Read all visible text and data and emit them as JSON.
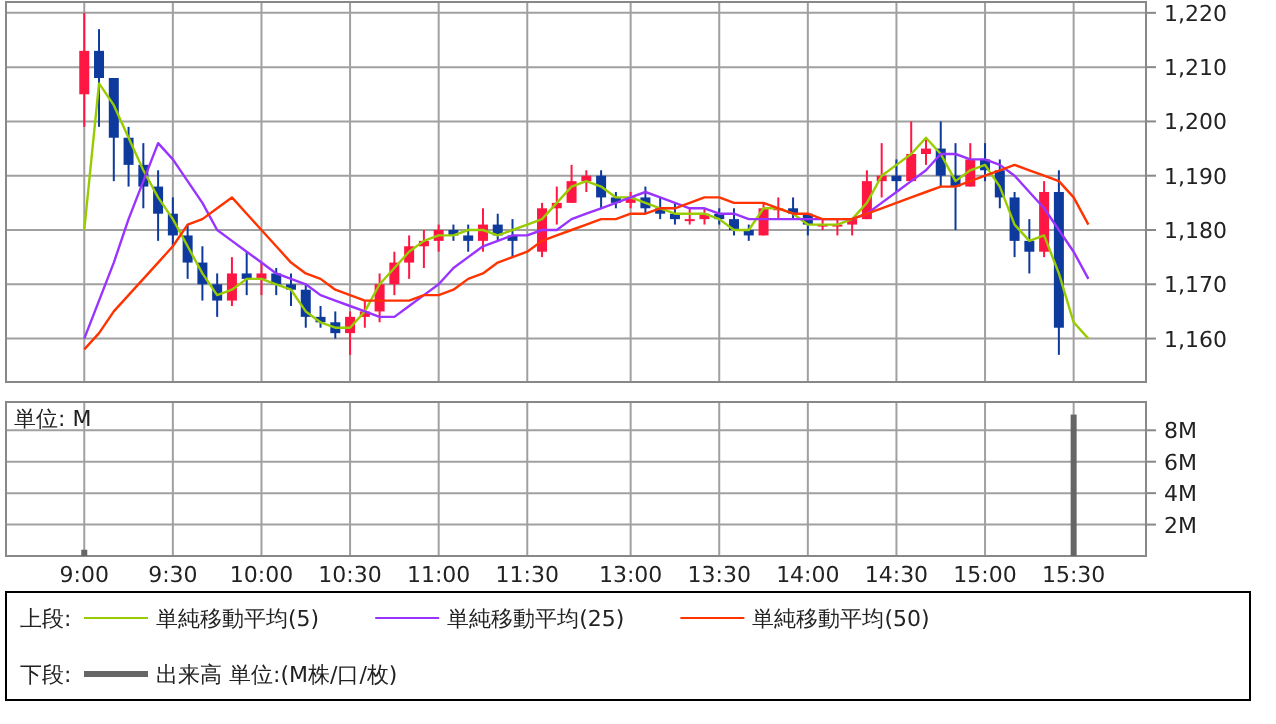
{
  "chart_data": [
    {
      "type": "candlestick",
      "tick_labels": "y",
      "grid": true,
      "legend": "bottom",
      "legend_title": "上段:",
      "categories": [
        null,
        null,
        null,
        null,
        null,
        null,
        null,
        null,
        null,
        null,
        null,
        null,
        null,
        null,
        null,
        null,
        null,
        null,
        null,
        null,
        null,
        null,
        null,
        null,
        null,
        null,
        null,
        null,
        null,
        null,
        null,
        null,
        null,
        null,
        null,
        null,
        null,
        null,
        null,
        null,
        null,
        null,
        null,
        null,
        null,
        null,
        null,
        null,
        null,
        null,
        null,
        null,
        null,
        null,
        null,
        null,
        null,
        null,
        null,
        null,
        null,
        null,
        null,
        null,
        null,
        null,
        null,
        null,
        null,
        null
      ],
      "ohlc": [
        [
          1205,
          1220,
          1199,
          1213
        ],
        [
          1213,
          1217,
          1199,
          1208
        ],
        [
          1208,
          1208,
          1189,
          1197
        ],
        [
          1197,
          1199,
          1188,
          1192
        ],
        [
          1192,
          1196,
          1184,
          1188
        ],
        [
          1188,
          1191,
          1178,
          1183
        ],
        [
          1183,
          1186,
          1177,
          1179
        ],
        [
          1179,
          1181,
          1171,
          1174
        ],
        [
          1174,
          1177,
          1167,
          1170
        ],
        [
          1170,
          1172,
          1164,
          1167
        ],
        [
          1167,
          1175,
          1166,
          1172
        ],
        [
          1172,
          1176,
          1168,
          1171
        ],
        [
          1171,
          1174,
          1168,
          1172
        ],
        [
          1172,
          1173,
          1168,
          1170
        ],
        [
          1170,
          1172,
          1166,
          1169
        ],
        [
          1169,
          1170,
          1162,
          1164
        ],
        [
          1164,
          1166,
          1162,
          1163
        ],
        [
          1163,
          1165,
          1160,
          1161
        ],
        [
          1161,
          1165,
          1157,
          1164
        ],
        [
          1164,
          1167,
          1162,
          1165
        ],
        [
          1165,
          1172,
          1163,
          1170
        ],
        [
          1170,
          1176,
          1168,
          1174
        ],
        [
          1174,
          1179,
          1171,
          1177
        ],
        [
          1177,
          1180,
          1173,
          1178
        ],
        [
          1178,
          1181,
          1176,
          1180
        ],
        [
          1180,
          1181,
          1178,
          1179
        ],
        [
          1179,
          1181,
          1176,
          1178
        ],
        [
          1178,
          1184,
          1176,
          1181
        ],
        [
          1181,
          1183,
          1178,
          1179
        ],
        [
          1179,
          1182,
          1175,
          1178
        ],
        null,
        [
          1176,
          1185,
          1175,
          1184
        ],
        [
          1184,
          1188,
          1181,
          1185
        ],
        [
          1185,
          1192,
          1185,
          1189
        ],
        [
          1189,
          1191,
          1187,
          1190
        ],
        [
          1190,
          1191,
          1184,
          1186
        ],
        [
          1186,
          1187,
          1184,
          1185
        ],
        [
          1185,
          1187,
          1184,
          1186
        ],
        [
          1186,
          1188,
          1183,
          1184
        ],
        [
          1184,
          1186,
          1182,
          1183
        ],
        [
          1183,
          1185,
          1181,
          1182
        ],
        [
          1182,
          1184,
          1181,
          1182
        ],
        [
          1182,
          1184,
          1181,
          1183
        ],
        [
          1183,
          1184,
          1181,
          1182
        ],
        [
          1182,
          1184,
          1179,
          1180
        ],
        [
          1180,
          1181,
          1178,
          1179
        ],
        [
          1179,
          1185,
          1179,
          1184
        ],
        [
          1184,
          1186,
          1182,
          1184
        ],
        [
          1184,
          1186,
          1182,
          1183
        ],
        [
          1183,
          1183,
          1179,
          1181
        ],
        [
          1181,
          1182,
          1180,
          1181
        ],
        [
          1181,
          1182,
          1179,
          1181
        ],
        [
          1181,
          1182,
          1179,
          1182
        ],
        [
          1182,
          1191,
          1182,
          1189
        ],
        [
          1189,
          1196,
          1186,
          1190
        ],
        [
          1190,
          1193,
          1187,
          1189
        ],
        [
          1189,
          1200,
          1189,
          1194
        ],
        [
          1194,
          1197,
          1192,
          1195
        ],
        [
          1195,
          1200,
          1188,
          1190
        ],
        [
          1190,
          1196,
          1180,
          1188
        ],
        [
          1188,
          1196,
          1188,
          1193
        ],
        [
          1193,
          1196,
          1189,
          1191
        ],
        [
          1191,
          1193,
          1184,
          1186
        ],
        [
          1186,
          1187,
          1175,
          1178
        ],
        [
          1178,
          1182,
          1172,
          1176
        ],
        [
          1176,
          1189,
          1175,
          1187
        ],
        [
          1187,
          1191,
          1157,
          1162
        ],
        null,
        null,
        null
      ],
      "series": [
        {
          "type": "line",
          "name": "単純移動平均(5)",
          "color": "#99cc00",
          "values": [
            1180,
            1207,
            1203,
            1197,
            1191,
            1186,
            1182,
            1177,
            1172,
            1168,
            1169,
            1171,
            1171,
            1170,
            1169,
            1165,
            1163,
            1162,
            1162,
            1165,
            1170,
            1173,
            1176,
            1178,
            1179,
            1179,
            1180,
            1180,
            1179,
            1180,
            1181,
            1182,
            1185,
            1188,
            1189,
            1188,
            1186,
            1186,
            1185,
            1184,
            1183,
            1183,
            1183,
            1182,
            1180,
            1180,
            1184,
            1184,
            1183,
            1181,
            1181,
            1181,
            1182,
            1185,
            1190,
            1192,
            1194,
            1197,
            1194,
            1189,
            1191,
            1192,
            1188,
            1181,
            1178,
            1179,
            1172,
            1163,
            1160,
            null
          ]
        },
        {
          "type": "line",
          "name": "単純移動平均(25)",
          "color": "#9933ff",
          "values": [
            1160,
            1167,
            1174,
            1182,
            1189,
            1196,
            1193,
            1189,
            1185,
            1180,
            1178,
            1176,
            1174,
            1172,
            1171,
            1170,
            1168,
            1167,
            1166,
            1165,
            1164,
            1164,
            1166,
            1168,
            1170,
            1173,
            1175,
            1177,
            1178,
            1179,
            1179,
            1180,
            1180,
            1182,
            1183,
            1184,
            1185,
            1186,
            1187,
            1186,
            1185,
            1184,
            1184,
            1183,
            1183,
            1182,
            1182,
            1182,
            1182,
            1182,
            1182,
            1182,
            1182,
            1183,
            1185,
            1187,
            1189,
            1191,
            1194,
            1194,
            1193,
            1193,
            1192,
            1190,
            1187,
            1184,
            1180,
            1176,
            1171,
            null
          ]
        },
        {
          "type": "line",
          "name": "単純移動平均(50)",
          "color": "#ff3300",
          "values": [
            1158,
            1161,
            1165,
            1168,
            1171,
            1174,
            1177,
            1181,
            1182,
            1184,
            1186,
            1183,
            1180,
            1177,
            1174,
            1172,
            1171,
            1169,
            1168,
            1167,
            1167,
            1167,
            1167,
            1168,
            1168,
            1169,
            1171,
            1172,
            1174,
            1175,
            1176,
            1178,
            1179,
            1180,
            1181,
            1182,
            1182,
            1183,
            1183,
            1184,
            1184,
            1185,
            1186,
            1186,
            1185,
            1185,
            1185,
            1184,
            1183,
            1183,
            1182,
            1182,
            1182,
            1183,
            1184,
            1185,
            1186,
            1187,
            1188,
            1188,
            1189,
            1190,
            1191,
            1192,
            1191,
            1190,
            1189,
            1186,
            1181,
            null
          ]
        }
      ],
      "ylim": [
        1152,
        1222
      ],
      "yticks": [
        {
          "value": 1160,
          "label": "1,160"
        },
        {
          "value": 1170,
          "label": "1,170"
        },
        {
          "value": 1180,
          "label": "1,180"
        },
        {
          "value": 1190,
          "label": "1,190"
        },
        {
          "value": 1200,
          "label": "1,200"
        },
        {
          "value": 1210,
          "label": "1,210"
        },
        {
          "value": 1220,
          "label": "1,220"
        }
      ]
    },
    {
      "type": "bar",
      "grid": true,
      "legend": "bottom",
      "legend_title": "下段:",
      "annotations": [
        "単位: M"
      ],
      "categories": [
        "9:00",
        null,
        null,
        null,
        null,
        null,
        "9:30",
        null,
        null,
        null,
        null,
        null,
        "10:00",
        null,
        null,
        null,
        null,
        null,
        "10:30",
        null,
        null,
        null,
        null,
        null,
        "11:00",
        null,
        null,
        null,
        null,
        null,
        "11:30",
        null,
        null,
        null,
        null,
        null,
        null,
        "13:00",
        null,
        null,
        null,
        null,
        null,
        "13:30",
        null,
        null,
        null,
        null,
        null,
        "14:00",
        null,
        null,
        null,
        null,
        null,
        "14:30",
        null,
        null,
        null,
        null,
        null,
        "15:00",
        null,
        null,
        null,
        null,
        null,
        "15:30",
        null,
        null
      ],
      "series": [
        {
          "name": "出来高 単位:(M株/口/枚)",
          "color": "#666666",
          "values": [
            0.4,
            null,
            null,
            null,
            null,
            null,
            null,
            null,
            null,
            null,
            null,
            null,
            null,
            null,
            null,
            null,
            null,
            null,
            null,
            null,
            null,
            null,
            null,
            null,
            null,
            null,
            null,
            null,
            null,
            null,
            null,
            null,
            null,
            null,
            null,
            null,
            null,
            null,
            null,
            null,
            null,
            null,
            null,
            null,
            null,
            null,
            null,
            null,
            null,
            null,
            null,
            null,
            null,
            null,
            null,
            null,
            null,
            null,
            null,
            null,
            null,
            null,
            null,
            null,
            null,
            null,
            null,
            9,
            null,
            null
          ]
        }
      ],
      "ylim": [
        0,
        9.8
      ],
      "yticks": [
        {
          "value": 2,
          "label": "2M"
        },
        {
          "value": 4,
          "label": "4M"
        },
        {
          "value": 6,
          "label": "6M"
        },
        {
          "value": 8,
          "label": "8M"
        }
      ]
    }
  ]
}
